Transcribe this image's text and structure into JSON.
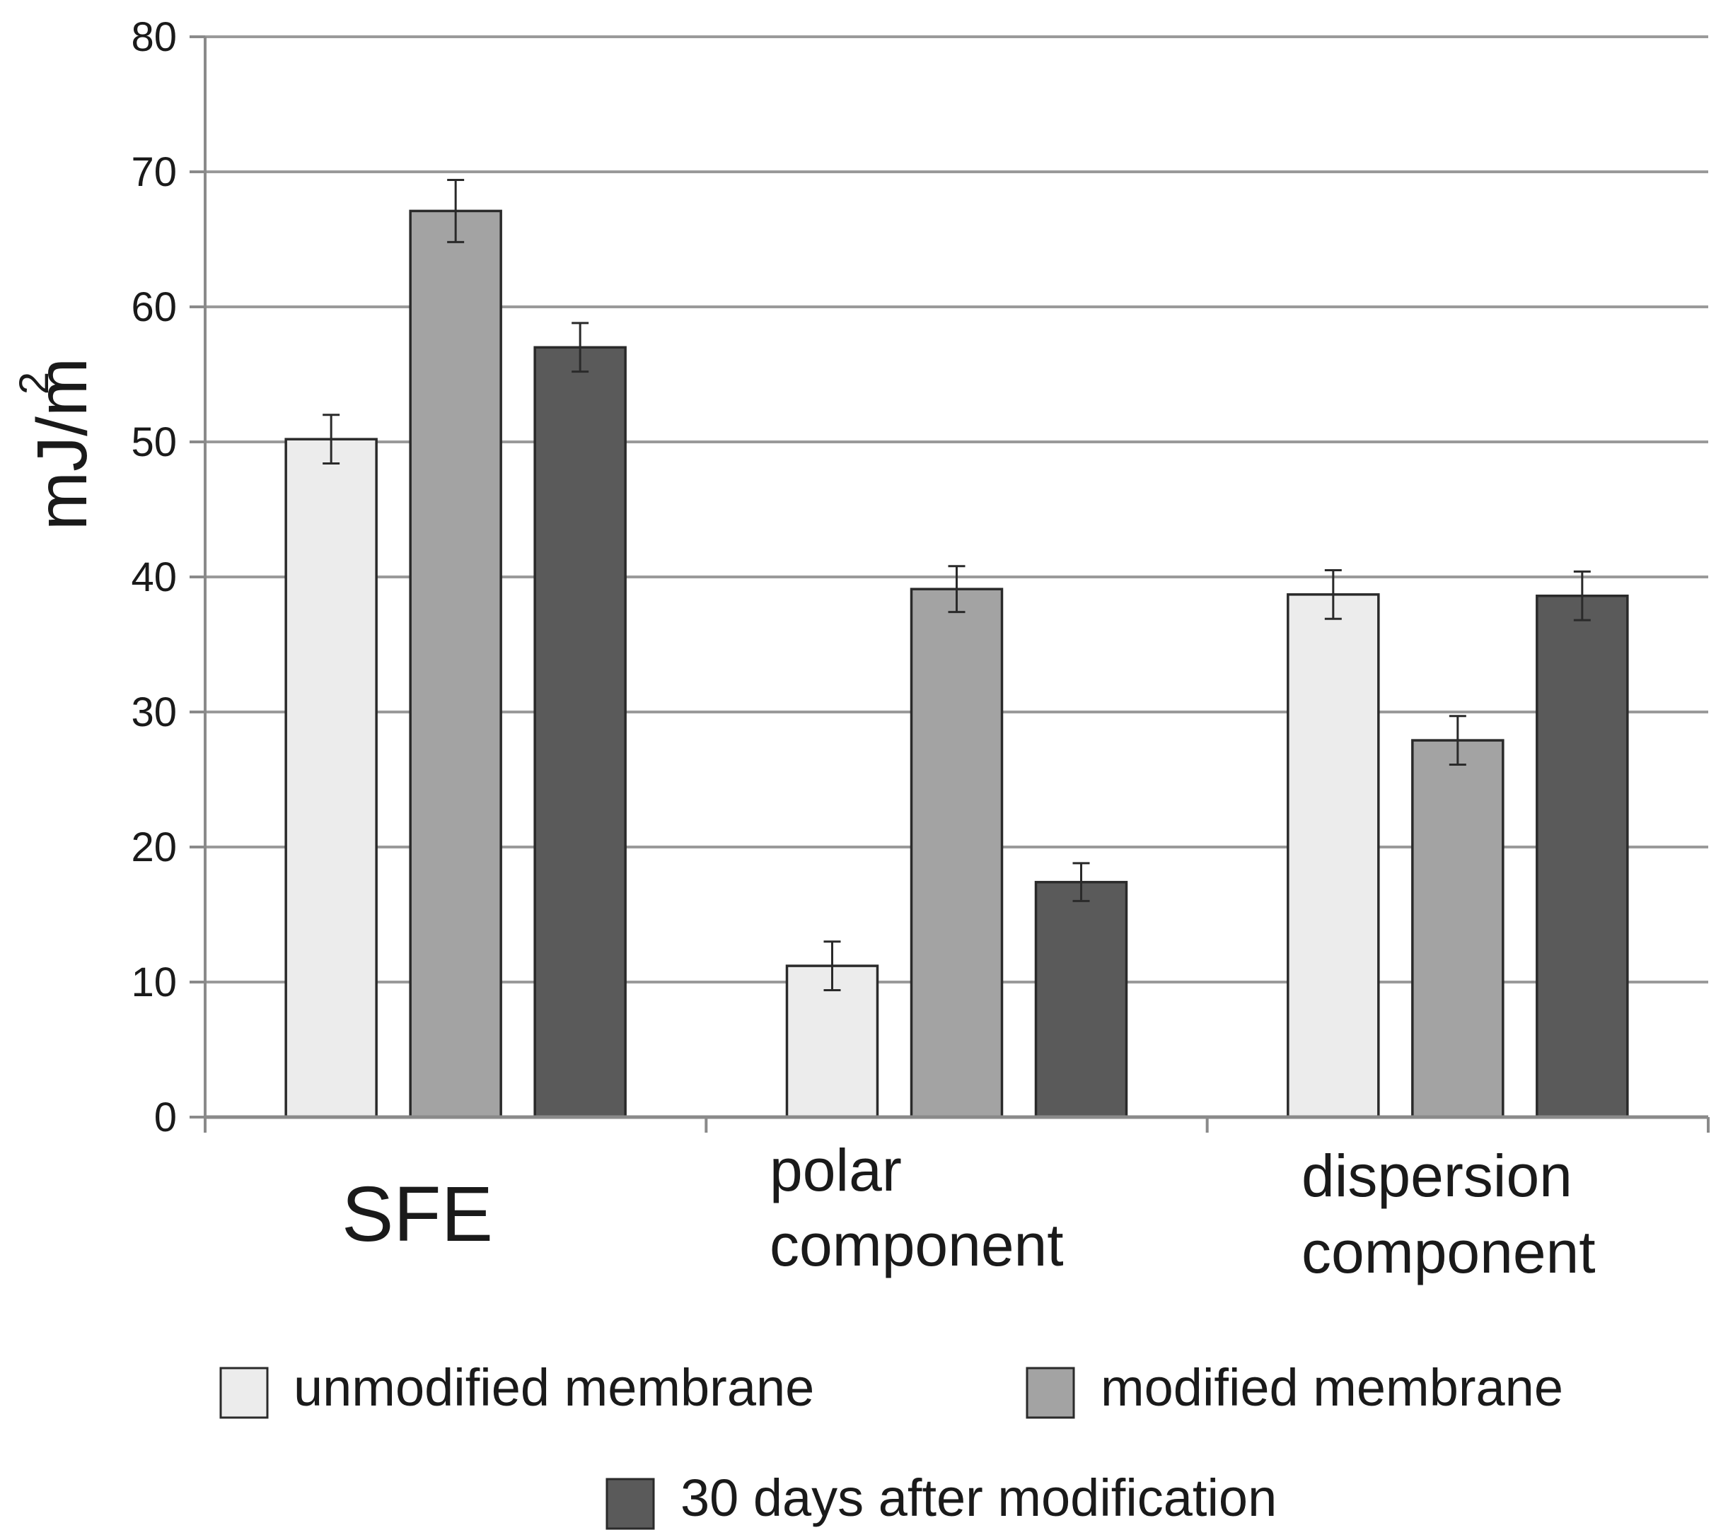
{
  "chart_data": {
    "type": "bar",
    "title": "",
    "xlabel": "",
    "ylabel": "mJ/m",
    "ylabel_superscript": "2",
    "ylim": [
      0,
      80
    ],
    "yticks": [
      "0",
      "10",
      "20",
      "30",
      "40",
      "50",
      "60",
      "70",
      "80"
    ],
    "grid": true,
    "legend_position": "bottom",
    "categories": [
      {
        "lines": [
          "SFE"
        ]
      },
      {
        "lines": [
          "polar",
          "component"
        ]
      },
      {
        "lines": [
          "dispersion",
          "component"
        ]
      }
    ],
    "series": [
      {
        "name": "unmodified membrane",
        "color": "#ececec",
        "values": [
          50.2,
          11.2,
          38.7
        ],
        "errors": [
          1.8,
          1.8,
          1.8
        ]
      },
      {
        "name": "modified membrane",
        "color": "#a3a3a3",
        "values": [
          67.1,
          39.1,
          27.9
        ],
        "errors": [
          2.3,
          1.7,
          1.8
        ]
      },
      {
        "name": "30 days after modification",
        "color": "#5a5a5a",
        "values": [
          57.0,
          17.4,
          38.6
        ],
        "errors": [
          1.8,
          1.4,
          1.8
        ]
      }
    ]
  }
}
